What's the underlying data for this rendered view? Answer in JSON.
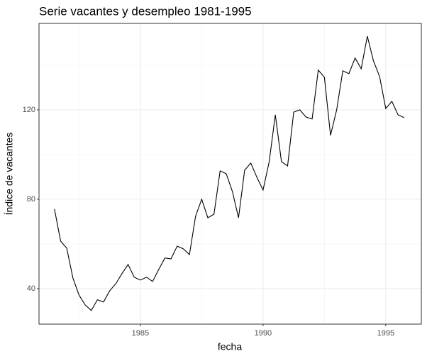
{
  "chart_data": {
    "type": "line",
    "title": "Serie vacantes y desempleo 1981-1995",
    "x_label": "fecha",
    "y_label": "Índice de vacantes",
    "x": [
      1981.5,
      1981.75,
      1982,
      1982.25,
      1982.5,
      1982.75,
      1983,
      1983.25,
      1983.5,
      1983.75,
      1984,
      1984.25,
      1984.5,
      1984.75,
      1985,
      1985.25,
      1985.5,
      1985.75,
      1986,
      1986.25,
      1986.5,
      1986.75,
      1987,
      1987.25,
      1987.5,
      1987.75,
      1988,
      1988.25,
      1988.5,
      1988.75,
      1989,
      1989.25,
      1989.5,
      1989.75,
      1990,
      1990.25,
      1990.5,
      1990.75,
      1991,
      1991.25,
      1991.5,
      1991.75,
      1992,
      1992.25,
      1992.5,
      1992.75,
      1993,
      1993.25,
      1993.5,
      1993.75,
      1994,
      1994.25,
      1994.5,
      1994.75,
      1995,
      1995.25,
      1995.5,
      1995.75
    ],
    "series": [
      {
        "name": "vacantes",
        "color": "#000000",
        "values": [
          75.6,
          61.3,
          58.1,
          44.8,
          37.1,
          32.7,
          30.2,
          35,
          34,
          39,
          42.2,
          46.7,
          50.8,
          45.1,
          43.8,
          45.1,
          43.2,
          48.6,
          53.7,
          53.3,
          59,
          57.8,
          55.2,
          72.4,
          80,
          71.7,
          73.3,
          92.7,
          91.4,
          83.5,
          71.7,
          93,
          96.2,
          89.8,
          84.1,
          96.8,
          117.8,
          96.8,
          94.9,
          119,
          120,
          116.8,
          115.9,
          137.8,
          134.6,
          108.6,
          120,
          137.5,
          136.2,
          143.2,
          138.4,
          153,
          141.9,
          134.9,
          120.6,
          123.8,
          117.8,
          116.5
        ]
      }
    ],
    "xlim": [
      1980.87,
      1996.45
    ],
    "ylim": [
      24.1,
      158.7
    ],
    "xticks": [
      1985,
      1990,
      1995
    ],
    "yticks": [
      40,
      80,
      120
    ],
    "grid": true
  }
}
